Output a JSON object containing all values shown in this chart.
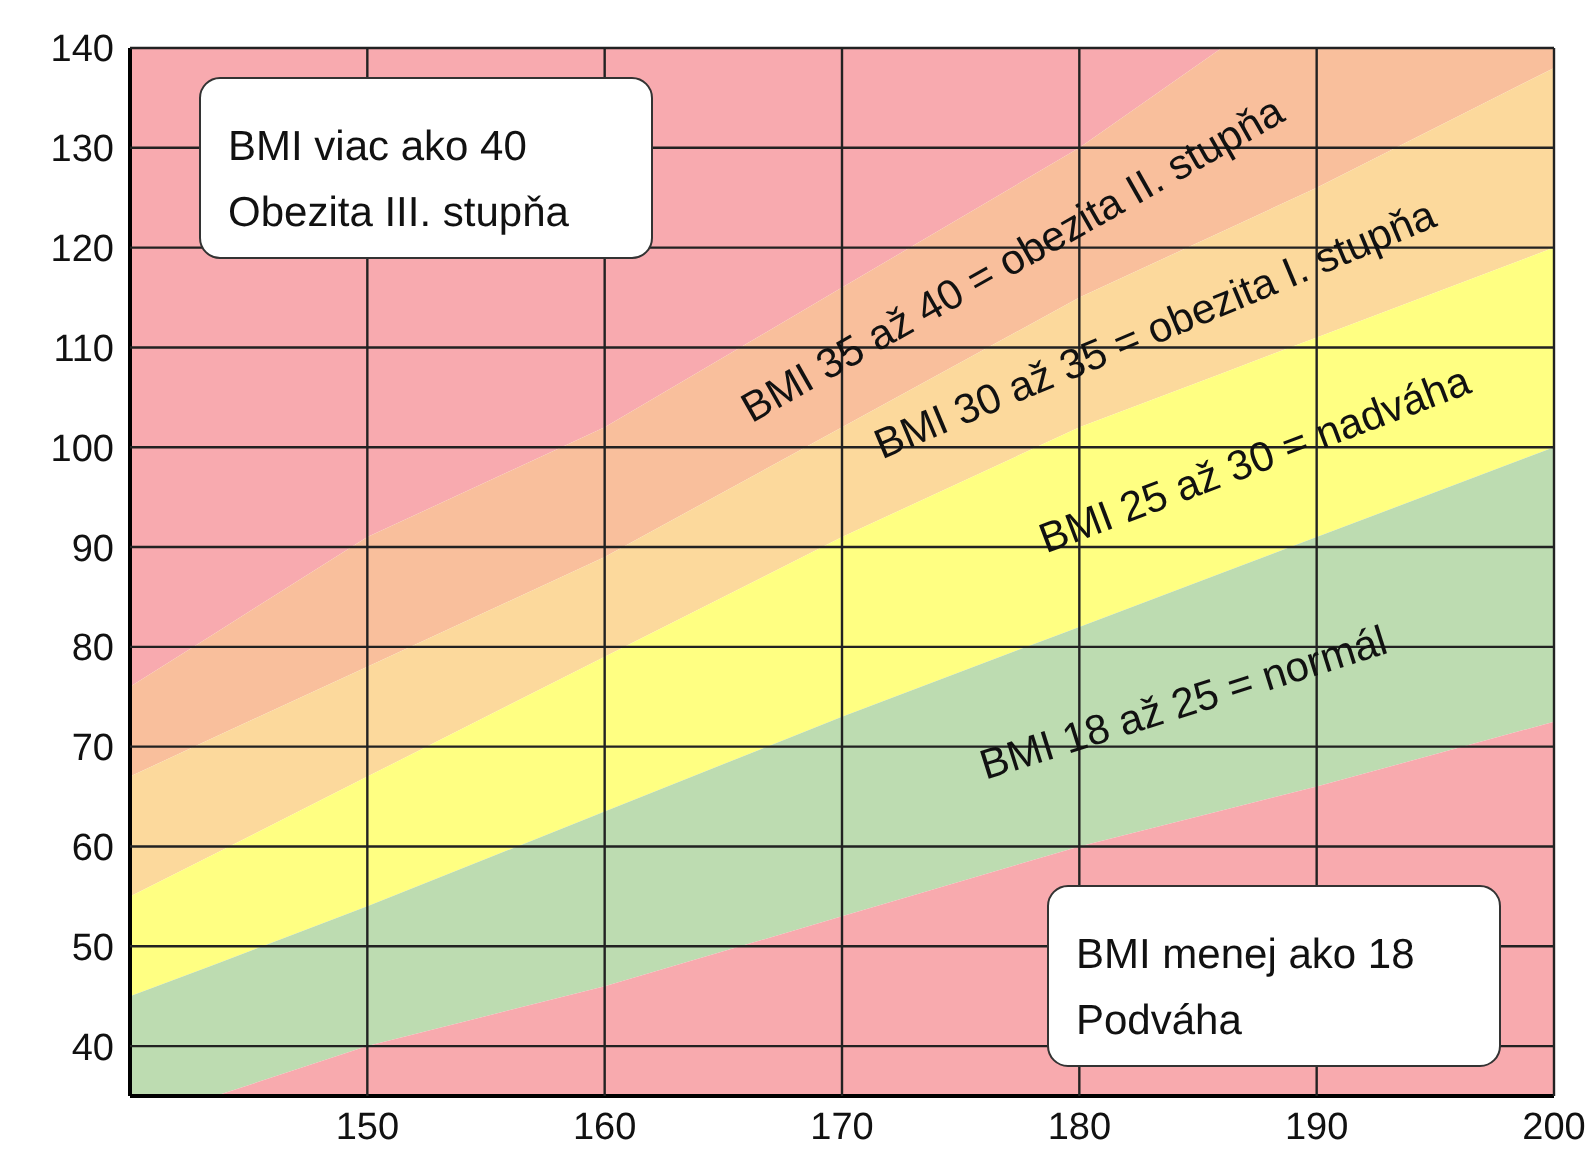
{
  "chart_data": {
    "type": "area",
    "x": [
      140,
      143.6,
      150,
      160,
      170,
      180,
      186,
      190,
      200
    ],
    "xlim": [
      140,
      200
    ],
    "xticks": [
      150,
      160,
      170,
      180,
      190,
      200
    ],
    "ylim": [
      35,
      140
    ],
    "yticks": [
      40,
      50,
      60,
      70,
      80,
      90,
      100,
      110,
      120,
      130,
      140
    ],
    "grid": true,
    "series": [
      {
        "color": "#f8aaaf",
        "values": [
          140,
          140,
          140,
          140,
          140,
          140,
          140,
          140,
          140
        ]
      },
      {
        "name": "BMI 35 až 40 = obezita II. stupňa",
        "color": "#f9bf9c",
        "values": [
          76,
          81.4,
          91,
          102,
          116,
          130,
          140,
          140,
          140
        ]
      },
      {
        "name": "BMI 30 až 35 = obezita I. stupňa",
        "color": "#fcd99c",
        "values": [
          67,
          71,
          78,
          89,
          102,
          115,
          121.6,
          126,
          138
        ]
      },
      {
        "name": "BMI 25 až 30 = nadváha",
        "color": "#ffff82",
        "values": [
          55,
          59.3,
          67,
          79,
          91,
          102,
          107.4,
          111,
          120
        ]
      },
      {
        "name": "BMI 18 až 25 = normál",
        "color": "#bddcb1",
        "values": [
          45,
          48.2,
          54,
          63.5,
          73,
          82,
          87.4,
          91,
          100
        ]
      },
      {
        "color": "#f8aaae",
        "x": [
          143.6,
          150,
          160,
          170,
          180,
          186,
          190,
          200
        ],
        "values": [
          35,
          40,
          46,
          53,
          60,
          63.6,
          66,
          72.5
        ]
      }
    ],
    "annotations": [
      "BMI viac ako 40\nObezita III. stupňa",
      "BMI menej ako 18\nPodváha"
    ]
  }
}
